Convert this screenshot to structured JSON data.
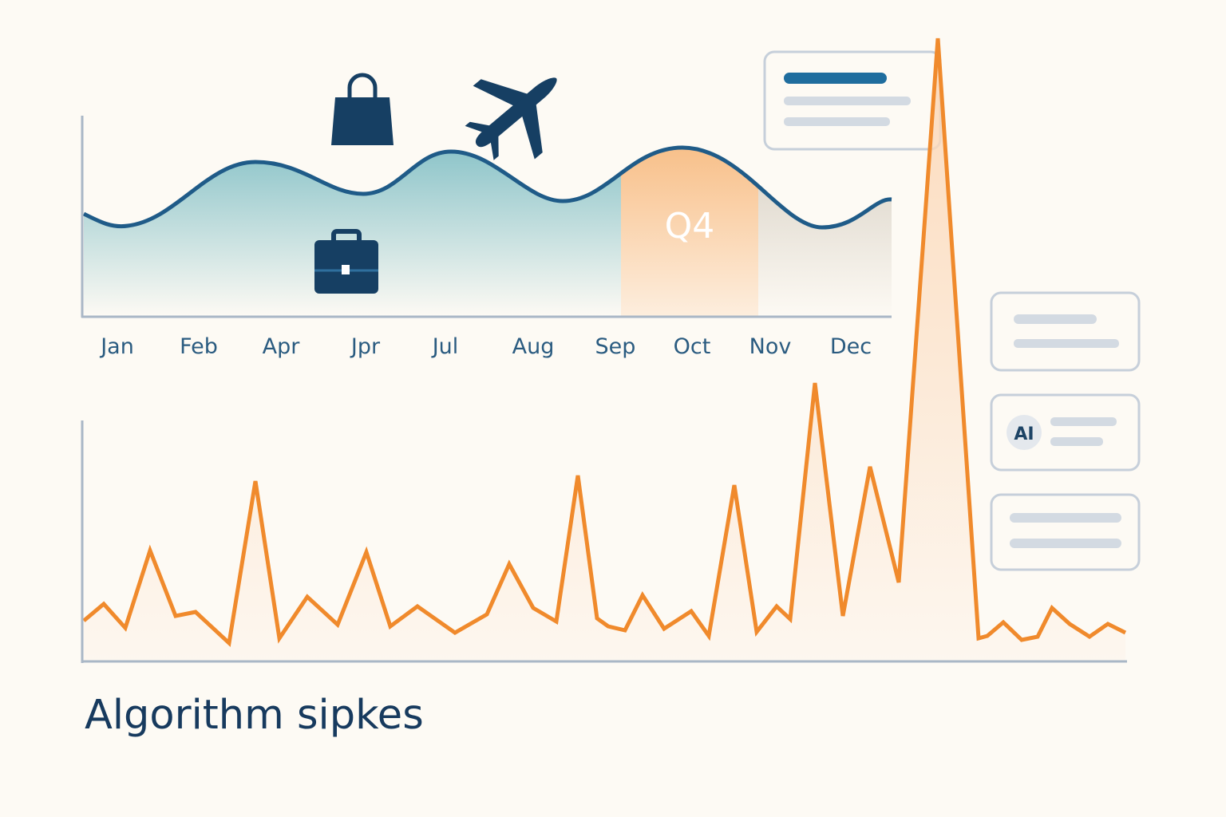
{
  "top_chart": {
    "months": [
      "Jan",
      "Feb",
      "Apr",
      "Jpr",
      "Jul",
      "Aug",
      "Sep",
      "Oct",
      "Nov",
      "Dec"
    ],
    "highlight": "Q4"
  },
  "bottom_chart": {
    "title": "Algorithm sipkes"
  },
  "side_cards": {
    "badge": "AI"
  }
}
